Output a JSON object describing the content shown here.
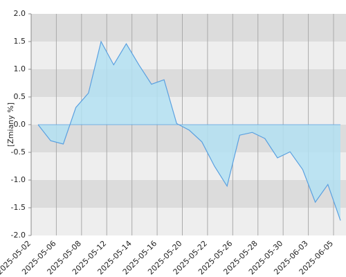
{
  "chart_data": {
    "type": "area",
    "y_label": "[Zmiany %]",
    "x_ticks": [
      "2025-05-02",
      "2025-05-06",
      "2025-05-08",
      "2025-05-12",
      "2025-05-14",
      "2025-05-16",
      "2025-05-20",
      "2025-05-22",
      "2025-05-26",
      "2025-05-28",
      "2025-05-30",
      "2025-06-03",
      "2025-06-05"
    ],
    "series": [
      {
        "color": "#5aa0e0",
        "fill": "#b3e0f2",
        "values": [
          0,
          -0.29,
          -0.35,
          0.31,
          0.57,
          1.5,
          1.08,
          1.46,
          1.08,
          0.73,
          0.81,
          0.02,
          -0.1,
          -0.31,
          -0.75,
          -1.11,
          -0.19,
          -0.14,
          -0.25,
          -0.6,
          -0.49,
          -0.81,
          -1.4,
          -1.08,
          -1.73
        ]
      }
    ],
    "ylim": [
      -2,
      2
    ],
    "yticks": [
      {
        "value": 2,
        "label": "2.0"
      },
      1.5,
      {
        "value": 1,
        "label": "1.0"
      },
      0.5,
      {
        "value": 0,
        "label": "0.0"
      },
      -0.5,
      {
        "value": -1,
        "label": "-1.0"
      },
      -1.5,
      {
        "value": -2,
        "label": "-2.0"
      }
    ],
    "grid": true
  }
}
